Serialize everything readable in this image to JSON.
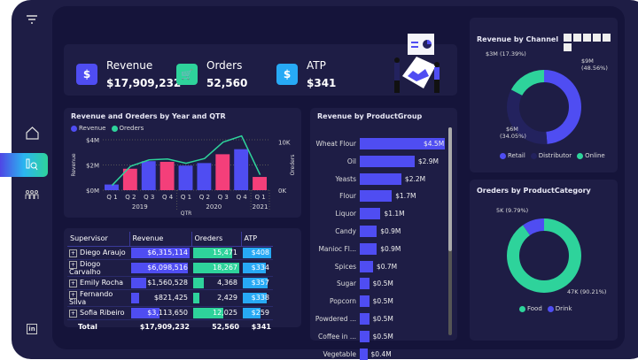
{
  "colors": {
    "revenue": "#4f4df2",
    "pink": "#f43f7a",
    "orders": "#2ed39b",
    "atp": "#27a9f5",
    "distributor": "#23225e"
  },
  "sidebar": {
    "items": [
      {
        "icon": "filter-icon"
      },
      {
        "icon": "home-icon"
      },
      {
        "icon": "analytics-icon",
        "active": true
      },
      {
        "icon": "team-icon"
      },
      {
        "icon": "linkedin-icon"
      }
    ],
    "linkedin": "in"
  },
  "kpis": [
    {
      "label": "Revenue",
      "value": "$17,909,232",
      "icon": "$"
    },
    {
      "label": "Orders",
      "value": "52,560",
      "icon": "🛒"
    },
    {
      "label": "ATP",
      "value": "$341",
      "icon": "$"
    }
  ],
  "combo": {
    "title": "Revenue and Oreders by Year and QTR",
    "legend": [
      "Revenue",
      "Oreders"
    ],
    "ylabel": "Revenue",
    "y2label": "Oreders",
    "xlabel": "QTR",
    "yticks": [
      "$4M",
      "$2M",
      "$0M"
    ],
    "y2ticks": [
      "10K",
      "0K"
    ],
    "years": [
      "2019",
      "2020",
      "2021"
    ]
  },
  "chart_data": [
    {
      "type": "bar",
      "title": "Revenue and Oreders by Year and QTR",
      "categories": [
        "Q 1",
        "Q 2",
        "Q 3",
        "Q 4",
        "Q 1",
        "Q 2",
        "Q 3",
        "Q 4",
        "Q 1"
      ],
      "years": [
        "2019",
        "2019",
        "2019",
        "2019",
        "2020",
        "2020",
        "2020",
        "2020",
        "2021"
      ],
      "series": [
        {
          "name": "Revenue",
          "type": "bar",
          "values": [
            0.45,
            1.7,
            2.3,
            2.25,
            1.95,
            2.15,
            2.85,
            3.25,
            1.05
          ],
          "unit": "$M"
        },
        {
          "name": "Oreders",
          "type": "line",
          "values": [
            1.0,
            5.0,
            6.3,
            6.5,
            5.6,
            6.6,
            10.0,
            11.3,
            3.2
          ],
          "unit": "K"
        }
      ],
      "bar_colors": [
        "#4f4df2",
        "#f43f7a",
        "#4f4df2",
        "#f43f7a",
        "#4f4df2",
        "#4f4df2",
        "#f43f7a",
        "#4f4df2",
        "#f43f7a"
      ],
      "ylim": [
        0,
        4
      ],
      "y2lim": [
        0,
        10.5
      ],
      "xlabel": "QTR",
      "ylabel": "Revenue",
      "y2label": "Oreders",
      "grid": true,
      "legend": "top-left"
    },
    {
      "type": "bar",
      "orientation": "horizontal",
      "title": "Revenue by ProductGroup",
      "categories": [
        "Wheat Flour",
        "Oil",
        "Yeasts",
        "Flour",
        "Liquor",
        "Candy",
        "Manioc Fl...",
        "Spices",
        "Sugar",
        "Popcorn",
        "Powdered ...",
        "Coffee in ...",
        "Vegetable"
      ],
      "values": [
        4.5,
        2.9,
        2.2,
        1.7,
        1.1,
        0.9,
        0.9,
        0.7,
        0.5,
        0.5,
        0.5,
        0.5,
        0.4
      ],
      "labels": [
        "$4.5M",
        "$2.9M",
        "$2.2M",
        "$1.7M",
        "$1.1M",
        "$0.9M",
        "$0.9M",
        "$0.7M",
        "$0.5M",
        "$0.5M",
        "$0.5M",
        "$0.5M",
        "$0.4M"
      ]
    },
    {
      "type": "pie",
      "donut": true,
      "title": "Revenue by Channel",
      "categories": [
        "Retail",
        "Distributor",
        "Online"
      ],
      "values": [
        48.56,
        34.05,
        17.39
      ],
      "labels": [
        "$9M\n(48.56%)",
        "$6M\n(34.05%)",
        "$3M (17.39%)"
      ],
      "colors": [
        "#4f4df2",
        "#23225e",
        "#2ed39b"
      ],
      "legend": "bottom"
    },
    {
      "type": "pie",
      "donut": true,
      "title": "Oreders by ProductCategory",
      "categories": [
        "Food",
        "Drink"
      ],
      "values": [
        90.21,
        9.79
      ],
      "labels": [
        "47K (90.21%)",
        "5K (9.79%)"
      ],
      "colors": [
        "#2ed39b",
        "#4f4df2"
      ],
      "legend": "bottom"
    }
  ],
  "table": {
    "headers": [
      "Supervisor",
      "Revenue",
      "Oreders",
      "ATP"
    ],
    "rows": [
      {
        "name": "Diego Araujo",
        "revenue": "$6,315,114",
        "orders": "15,471",
        "atp": "$408",
        "r": 1,
        "o": 0.85,
        "a": 1
      },
      {
        "name": "Diogo Carvalho",
        "revenue": "$6,098,516",
        "orders": "18,267",
        "atp": "$334",
        "r": 0.97,
        "o": 1,
        "a": 0.82
      },
      {
        "name": "Emily Rocha",
        "revenue": "$1,560,528",
        "orders": "4,368",
        "atp": "$357",
        "r": 0.25,
        "o": 0.24,
        "a": 0.87
      },
      {
        "name": "Fernando Silva",
        "revenue": "$821,425",
        "orders": "2,429",
        "atp": "$338",
        "r": 0.13,
        "o": 0.13,
        "a": 0.83
      },
      {
        "name": "Sofia Ribeiro",
        "revenue": "$3,113,650",
        "orders": "12,025",
        "atp": "$259",
        "r": 0.49,
        "o": 0.66,
        "a": 0.63
      }
    ],
    "total": {
      "label": "Total",
      "revenue": "$17,909,232",
      "orders": "52,560",
      "atp": "$341"
    }
  },
  "productgroup": {
    "title": "Revenue by ProductGroup"
  },
  "channel": {
    "title": "Revenue by Channel",
    "legend": [
      "Retail",
      "Distributor",
      "Online"
    ],
    "labels": {
      "retail_a": "$9M",
      "retail_b": "(48.56%)",
      "dist_a": "$6M",
      "dist_b": "(34.05%)",
      "online": "$3M (17.39%)"
    }
  },
  "category": {
    "title": "Oreders by ProductCategory",
    "legend": [
      "Food",
      "Drink"
    ],
    "labels": {
      "food": "47K (90.21%)",
      "drink": "5K (9.79%)"
    }
  }
}
